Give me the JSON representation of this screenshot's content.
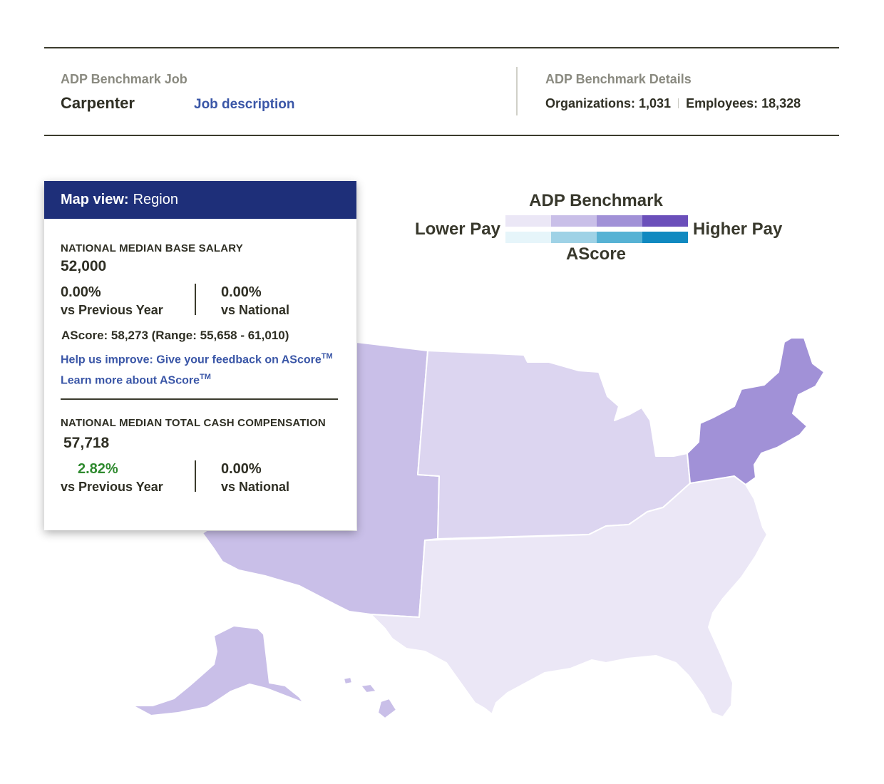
{
  "header": {
    "job_caption": "ADP Benchmark Job",
    "job_title": "Carpenter",
    "job_description_link": "Job description",
    "details_caption": "ADP Benchmark Details",
    "organizations": "Organizations: 1,031",
    "employees": "Employees: 18,328"
  },
  "legend": {
    "title": "ADP Benchmark",
    "low": "Lower Pay",
    "high": "Higher Pay",
    "sub": "AScore",
    "purple_scale": [
      "#ebe7f6",
      "#c9bfe8",
      "#a191d7",
      "#6b4fba"
    ],
    "blue_scale": [
      "#e6f5fa",
      "#9fd2e6",
      "#57b2d4",
      "#1189c0"
    ]
  },
  "panel": {
    "view_label": "Map view:",
    "view_value": "Region",
    "base": {
      "label": "NATIONAL MEDIAN BASE SALARY",
      "value": "52,000",
      "vs_prev_pct": "0.00%",
      "vs_prev_label": "vs Previous Year",
      "vs_nat_pct": "0.00%",
      "vs_nat_label": "vs National"
    },
    "ascore_text": "AScore: 58,273 (Range: 55,658 - 61,010)",
    "feedback_link": "Help us improve: Give your feedback on AScore",
    "learn_link": "Learn more about AScore",
    "tm": "TM",
    "total": {
      "label": "NATIONAL MEDIAN TOTAL CASH COMPENSATION",
      "value": "57,718",
      "vs_prev_pct": "2.82%",
      "vs_prev_label": "vs Previous Year",
      "vs_nat_pct": "0.00%",
      "vs_nat_label": "vs National"
    }
  },
  "map": {
    "regions": [
      {
        "name": "West",
        "color": "#c9bfe8"
      },
      {
        "name": "Midwest",
        "color": "#dcd5f0"
      },
      {
        "name": "South",
        "color": "#ebe7f6"
      },
      {
        "name": "Northeast",
        "color": "#a191d7"
      },
      {
        "name": "Alaska",
        "color": "#c9bfe8"
      },
      {
        "name": "Hawaii",
        "color": "#c9bfe8"
      }
    ]
  }
}
